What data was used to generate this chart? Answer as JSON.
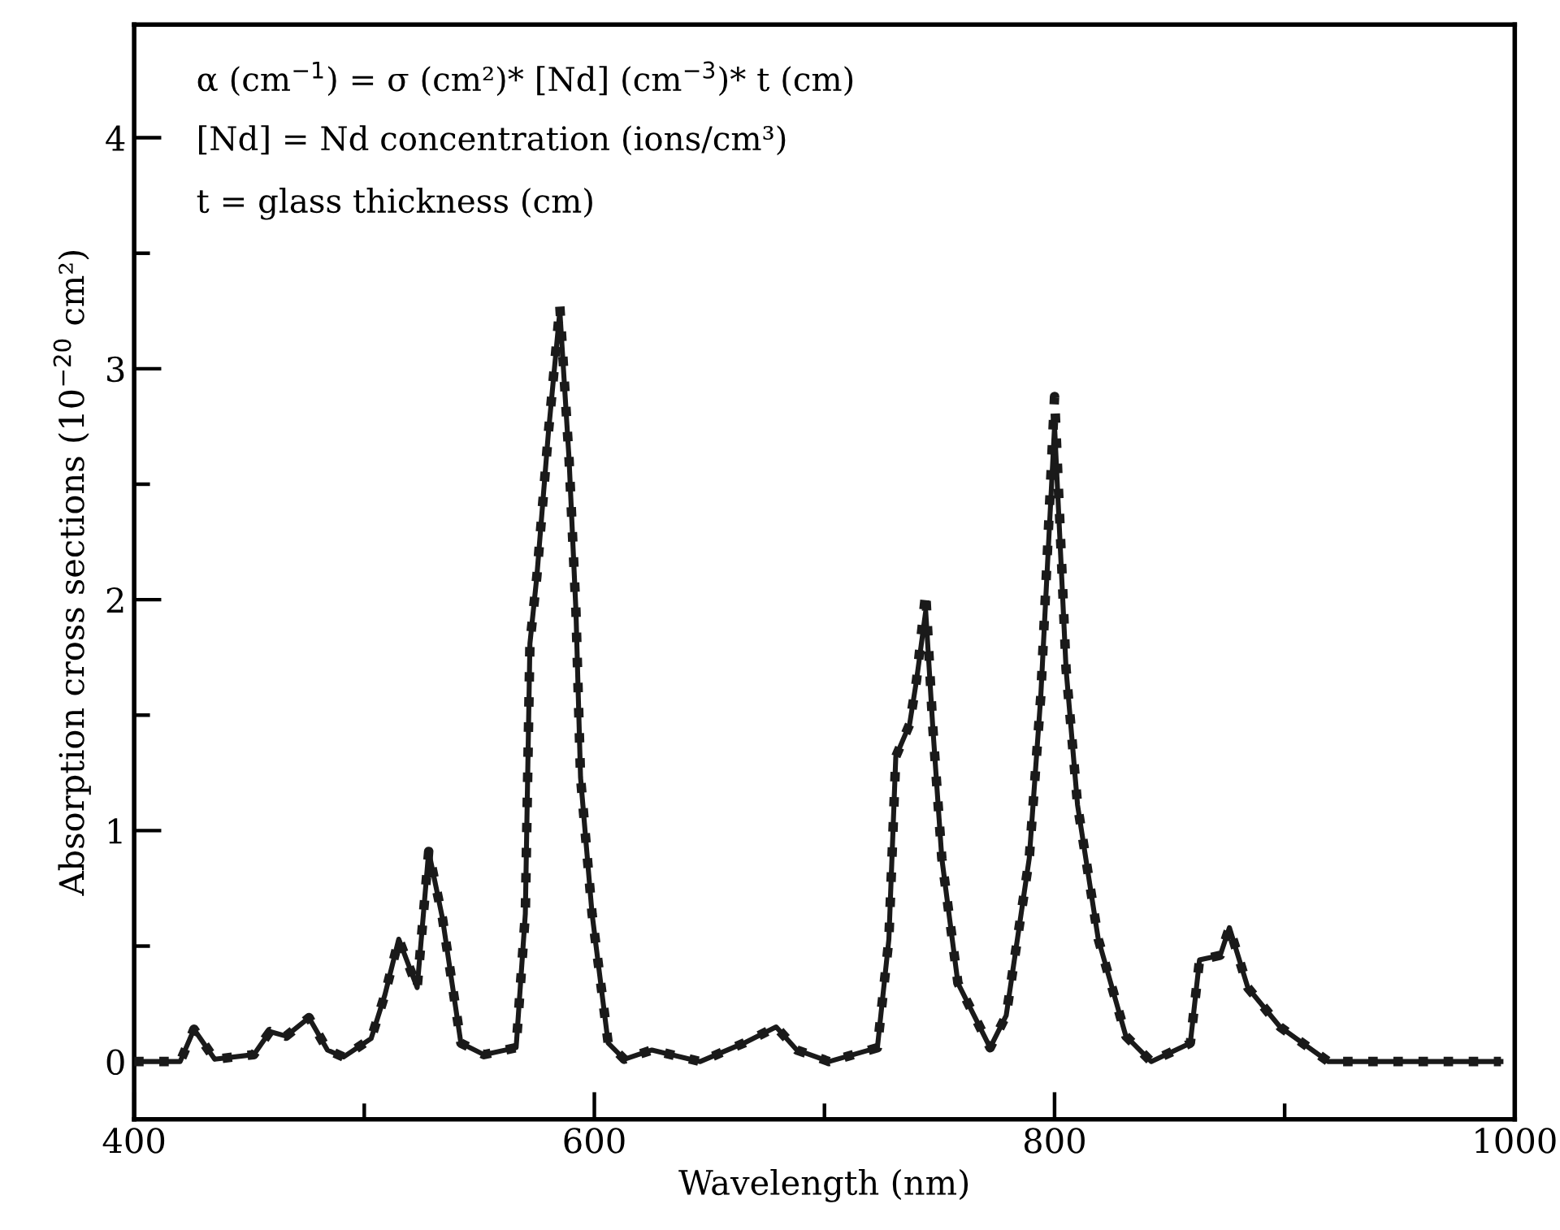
{
  "chart_data": {
    "type": "line",
    "xlabel": "Wavelength (nm)",
    "ylabel": "Absorption cross sections (10$^{−20}$ cm²)",
    "annotations": [
      "α (cm$^{−1}$) = σ (cm²)* [Nd] (cm$^{−3}$)* t (cm)",
      "[Nd] = Nd concentration (ions/cm³)",
      "t = glass thickness (cm)"
    ],
    "x": [
      400,
      420,
      426,
      435,
      452,
      459,
      466,
      476,
      484,
      491,
      503,
      509,
      515,
      523,
      528,
      534,
      542,
      552,
      566,
      570,
      572,
      575,
      580,
      585,
      589,
      592,
      594,
      599,
      606,
      613,
      625,
      646,
      665,
      679,
      688,
      702,
      723,
      728,
      731,
      737,
      740,
      744,
      747,
      751,
      758,
      772,
      779,
      789,
      794,
      800,
      805,
      810,
      819,
      831,
      842,
      859,
      863,
      872,
      876,
      884,
      898,
      919,
      994
    ],
    "series": [
      {
        "color": "#1a1a1a",
        "line_style": "solid",
        "values": [
          0,
          0,
          0.14,
          0.01,
          0.03,
          0.13,
          0.11,
          0.19,
          0.05,
          0.02,
          0.1,
          0.29,
          0.53,
          0.32,
          0.91,
          0.62,
          0.08,
          0.03,
          0.06,
          0.64,
          1.81,
          2.1,
          2.72,
          3.25,
          2.61,
          1.95,
          1.23,
          0.64,
          0.08,
          0.01,
          0.05,
          0,
          0.08,
          0.15,
          0.05,
          0,
          0.06,
          0.53,
          1.32,
          1.46,
          1.65,
          1.95,
          1.46,
          0.88,
          0.34,
          0.06,
          0.2,
          0.88,
          1.58,
          2.75,
          1.7,
          1.11,
          0.53,
          0.11,
          0,
          0.08,
          0.44,
          0.46,
          0.58,
          0.32,
          0.15,
          0,
          0
        ]
      },
      {
        "color": "#1a1a1a",
        "line_style": "dotted",
        "values": [
          0,
          0,
          0.14,
          0.01,
          0.03,
          0.13,
          0.11,
          0.19,
          0.05,
          0.02,
          0.1,
          0.29,
          0.53,
          0.32,
          0.91,
          0.62,
          0.08,
          0.03,
          0.06,
          0.64,
          1.81,
          2.1,
          2.72,
          3.27,
          2.61,
          1.95,
          1.23,
          0.64,
          0.08,
          0.01,
          0.05,
          0,
          0.08,
          0.15,
          0.05,
          0,
          0.06,
          0.53,
          1.32,
          1.46,
          1.65,
          2.03,
          1.46,
          0.88,
          0.34,
          0.06,
          0.2,
          0.88,
          1.58,
          2.88,
          1.7,
          1.11,
          0.53,
          0.11,
          0,
          0.08,
          0.44,
          0.46,
          0.58,
          0.32,
          0.15,
          0,
          0
        ]
      }
    ],
    "xlim": [
      400,
      1000
    ],
    "xticks": [
      400,
      {
        "value": 500,
        "label": null
      },
      600,
      {
        "value": 700,
        "label": null
      },
      800,
      {
        "value": 900,
        "label": null
      },
      1000
    ],
    "ylim": [
      -0.25,
      4.49
    ],
    "yticks": [
      0,
      {
        "value": 0.5,
        "label": null
      },
      1,
      {
        "value": 1.5,
        "label": null
      },
      2,
      {
        "value": 2.5,
        "label": null
      },
      3,
      {
        "value": 3.5,
        "label": null
      },
      4
    ]
  }
}
